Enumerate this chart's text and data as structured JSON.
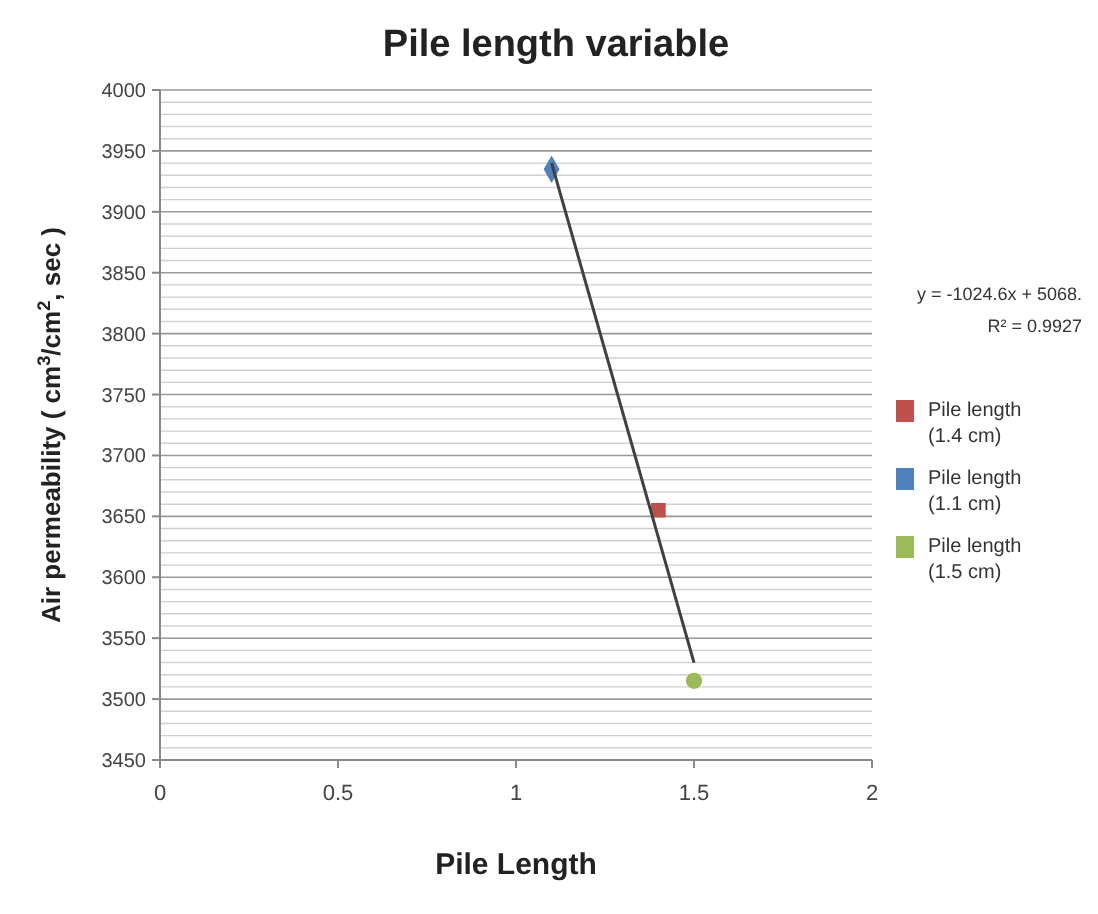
{
  "chart_data": {
    "type": "scatter",
    "title": "Pile length variable",
    "xlabel": "Pile Length",
    "ylabel": "Air permeability ( cm$^{3}$/cm$^{2}$, sec )",
    "xlim": [
      0,
      2
    ],
    "xticks": [
      0,
      0.5,
      1,
      1.5,
      2
    ],
    "ylim": [
      3450,
      4000
    ],
    "yticks": [
      3450,
      3500,
      3550,
      3600,
      3650,
      3700,
      3750,
      3800,
      3850,
      3900,
      3950,
      4000
    ],
    "grid": "y",
    "legend": "right",
    "annotations": [
      "y = -1024.6x + 5068.",
      "R² = 0.9927"
    ],
    "series": [
      {
        "type": "line",
        "color": "#404040",
        "x": [
          1.1,
          1.5
        ],
        "values": [
          3940,
          3530
        ],
        "marker": "none"
      },
      {
        "name": "Pile length (1.4 cm)",
        "color": "#c0504d",
        "x": [
          1.4
        ],
        "values": [
          3655
        ],
        "marker": "square"
      },
      {
        "name": "Pile length (1.1 cm)",
        "color": "#4f81bd",
        "x": [
          1.1
        ],
        "values": [
          3935
        ],
        "marker": "diamond"
      },
      {
        "name": "Pile length (1.5 cm)",
        "color": "#9bbb59",
        "x": [
          1.5
        ],
        "values": [
          3515
        ],
        "marker": "circle"
      }
    ]
  }
}
